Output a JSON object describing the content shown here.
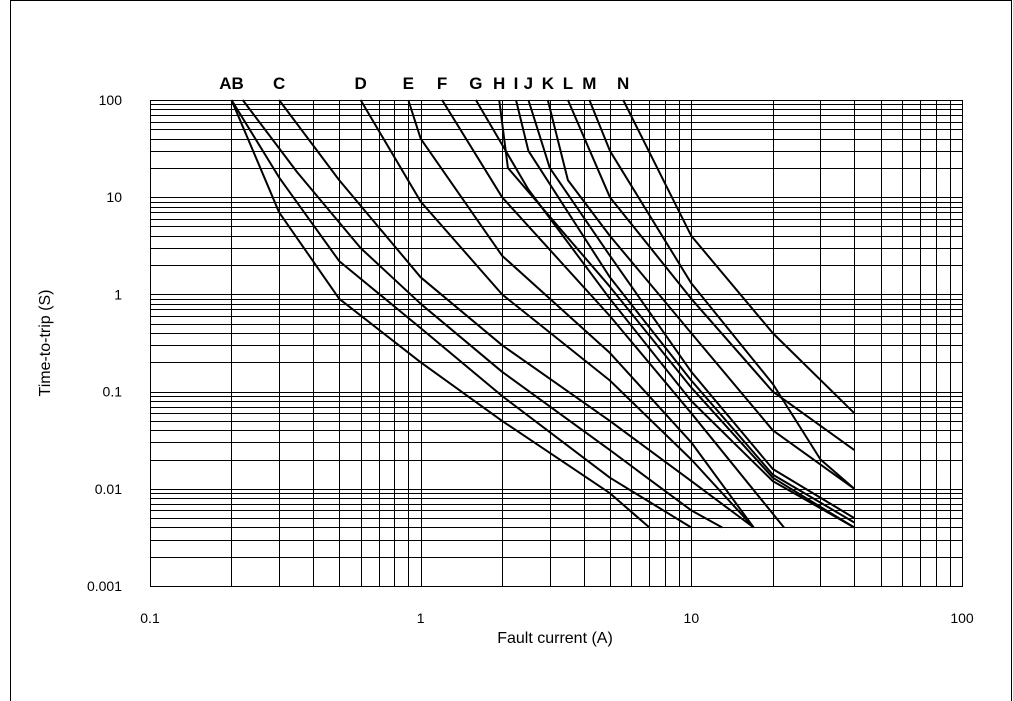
{
  "chart_data": {
    "type": "line",
    "title": "",
    "xlabel": "Fault current (A)",
    "ylabel": "Time-to-trip (S)",
    "xscale": "log",
    "yscale": "log",
    "xlim": [
      0.1,
      100
    ],
    "ylim": [
      0.001,
      100
    ],
    "grid": true,
    "legend": "none",
    "x_ticks": [
      "0.1",
      "1",
      "10",
      "100"
    ],
    "y_ticks": [
      "0.001",
      "0.01",
      "0.1",
      "1",
      "10",
      "100"
    ],
    "curve_labels": [
      {
        "text": "AB",
        "x": 0.2
      },
      {
        "text": "C",
        "x": 0.3
      },
      {
        "text": "D",
        "x": 0.6
      },
      {
        "text": "E",
        "x": 0.9
      },
      {
        "text": "F",
        "x": 1.2
      },
      {
        "text": "G",
        "x": 1.6
      },
      {
        "text": "H",
        "x": 1.95
      },
      {
        "text": "I",
        "x": 2.25
      },
      {
        "text": "J",
        "x": 2.5
      },
      {
        "text": "K",
        "x": 2.95
      },
      {
        "text": "L",
        "x": 3.5
      },
      {
        "text": "M",
        "x": 4.2
      },
      {
        "text": "N",
        "x": 5.6
      }
    ],
    "series": [
      {
        "x": [
          0.2,
          0.3,
          0.5,
          1,
          2,
          5,
          7
        ],
        "y": [
          100,
          7,
          0.9,
          0.2,
          0.05,
          0.009,
          0.004
        ]
      },
      {
        "x": [
          0.2,
          0.3,
          0.5,
          1,
          2,
          5,
          10
        ],
        "y": [
          100,
          16,
          2.2,
          0.45,
          0.09,
          0.013,
          0.004
        ]
      },
      {
        "x": [
          0.22,
          0.35,
          0.6,
          1,
          2,
          5,
          10,
          13
        ],
        "y": [
          100,
          18,
          3,
          0.8,
          0.16,
          0.025,
          0.006,
          0.004
        ]
      },
      {
        "x": [
          0.3,
          0.5,
          1,
          2,
          5,
          10,
          17
        ],
        "y": [
          100,
          15,
          1.5,
          0.3,
          0.05,
          0.012,
          0.004
        ]
      },
      {
        "x": [
          0.6,
          1,
          2,
          5,
          10,
          17
        ],
        "y": [
          100,
          9,
          1,
          0.13,
          0.02,
          0.004
        ]
      },
      {
        "x": [
          0.9,
          1,
          2,
          5,
          10,
          17
        ],
        "y": [
          100,
          40,
          2.5,
          0.25,
          0.03,
          0.004
        ]
      },
      {
        "x": [
          1.2,
          2,
          5,
          10,
          22
        ],
        "y": [
          100,
          10,
          0.6,
          0.06,
          0.004
        ]
      },
      {
        "x": [
          1.6,
          2.5,
          5,
          10,
          20,
          40
        ],
        "y": [
          100,
          12,
          0.9,
          0.08,
          0.012,
          0.004
        ]
      },
      {
        "x": [
          1.95,
          2.1,
          5,
          10,
          20,
          40
        ],
        "y": [
          100,
          20,
          1.2,
          0.11,
          0.013,
          0.004
        ]
      },
      {
        "x": [
          2.25,
          2.5,
          5,
          10,
          20,
          40
        ],
        "y": [
          100,
          30,
          1.5,
          0.13,
          0.014,
          0.0045
        ]
      },
      {
        "x": [
          2.5,
          3,
          5,
          10,
          20,
          40
        ],
        "y": [
          100,
          20,
          2.5,
          0.16,
          0.016,
          0.005
        ]
      },
      {
        "x": [
          2.95,
          3.5,
          5,
          10,
          20,
          40
        ],
        "y": [
          100,
          15,
          4,
          0.4,
          0.04,
          0.01
        ]
      },
      {
        "x": [
          3.5,
          5,
          10,
          20,
          40
        ],
        "y": [
          100,
          10,
          0.9,
          0.1,
          0.025
        ]
      },
      {
        "x": [
          4.2,
          5,
          10,
          20,
          30,
          40
        ],
        "y": [
          100,
          30,
          1.3,
          0.12,
          0.02,
          0.01
        ]
      },
      {
        "x": [
          5.6,
          10,
          20,
          40
        ],
        "y": [
          100,
          4,
          0.4,
          0.06
        ]
      }
    ]
  }
}
